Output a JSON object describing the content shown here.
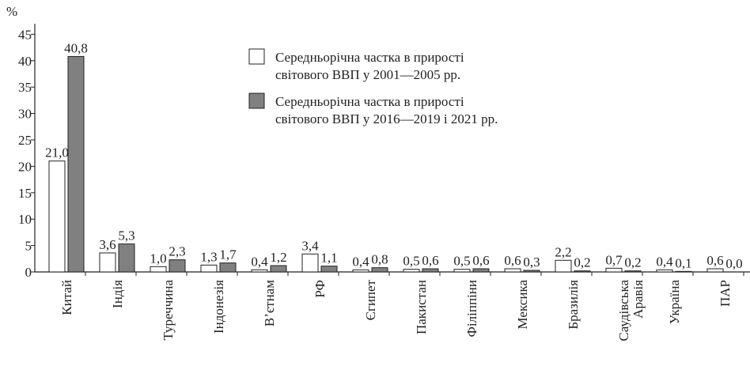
{
  "chart_data": {
    "type": "bar",
    "y_label": "%",
    "categories": [
      "Китай",
      "Індія",
      "Туреччина",
      "Індонезія",
      "В’єтнам",
      "РФ",
      "Єгипет",
      "Пакистан",
      "Філіппіни",
      "Мексика",
      "Бразилія",
      "Саудівська\nАравія",
      "Україна",
      "ПАР"
    ],
    "series": [
      {
        "name": "Середньорічна частка в прирості\nсвітового ВВП у 2001—2005 рр.",
        "color": "#ffffff",
        "values": [
          21.0,
          3.6,
          1.0,
          1.3,
          0.4,
          3.4,
          0.4,
          0.5,
          0.5,
          0.6,
          2.2,
          0.7,
          0.4,
          0.6
        ],
        "value_labels": [
          "21,0",
          "3,6",
          "1,0",
          "1,3",
          "0,4",
          "3,4",
          "0,4",
          "0,5",
          "0,5",
          "0,6",
          "2,2",
          "0,7",
          "0,4",
          "0,6"
        ]
      },
      {
        "name": "Середньорічна частка в прирості\nсвітового ВВП у 2016—2019 і 2021 рр.",
        "color": "#808080",
        "values": [
          40.8,
          5.3,
          2.3,
          1.7,
          1.2,
          1.1,
          0.8,
          0.6,
          0.6,
          0.3,
          0.2,
          0.2,
          0.1,
          0.0
        ],
        "value_labels": [
          "40,8",
          "5,3",
          "2,3",
          "1,7",
          "1,2",
          "1,1",
          "0,8",
          "0,6",
          "0,6",
          "0,3",
          "0,2",
          "0,2",
          "0,1",
          "0,0"
        ]
      }
    ],
    "ylim": [
      0,
      47
    ],
    "yticks": [
      0,
      5,
      10,
      15,
      20,
      25,
      30,
      35,
      40,
      45
    ]
  }
}
